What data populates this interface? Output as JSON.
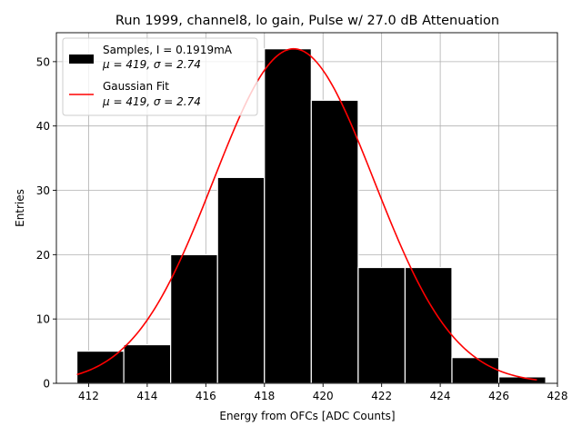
{
  "chart_data": {
    "type": "bar",
    "title": "Run 1999, channel8, lo gain, Pulse w/ 27.0 dB Attenuation",
    "xlabel": "Energy from OFCs [ADC Counts]",
    "ylabel": "Entries",
    "xlim": [
      410.9,
      428.0
    ],
    "ylim": [
      0,
      54.5
    ],
    "xticks": [
      412,
      414,
      416,
      418,
      420,
      422,
      424,
      426,
      428
    ],
    "yticks": [
      0,
      10,
      20,
      30,
      40,
      50
    ],
    "grid": true,
    "bar_color": "#000000",
    "fit_color": "#ff0000",
    "bins": [
      {
        "lo": 411.6,
        "hi": 413.2,
        "count": 5
      },
      {
        "lo": 413.2,
        "hi": 414.8,
        "count": 6
      },
      {
        "lo": 414.8,
        "hi": 416.4,
        "count": 20
      },
      {
        "lo": 416.4,
        "hi": 418.0,
        "count": 32
      },
      {
        "lo": 418.0,
        "hi": 419.6,
        "count": 52
      },
      {
        "lo": 419.6,
        "hi": 421.2,
        "count": 44
      },
      {
        "lo": 421.2,
        "hi": 422.8,
        "count": 18
      },
      {
        "lo": 422.8,
        "hi": 424.4,
        "count": 18
      },
      {
        "lo": 424.4,
        "hi": 426.0,
        "count": 4
      },
      {
        "lo": 426.0,
        "hi": 427.6,
        "count": 1
      }
    ],
    "fit": {
      "mu": 419.0,
      "sigma": 2.74,
      "amplitude": 52.0,
      "x_start": 411.6,
      "x_end": 427.3
    },
    "legend": {
      "location": "top-left",
      "entries": [
        {
          "kind": "patch",
          "line1": "Samples, I = 0.1919mA",
          "line2": "μ = 419, σ = 2.74"
        },
        {
          "kind": "line",
          "line1": "Gaussian Fit",
          "line2": "μ = 419, σ = 2.74"
        }
      ]
    }
  }
}
